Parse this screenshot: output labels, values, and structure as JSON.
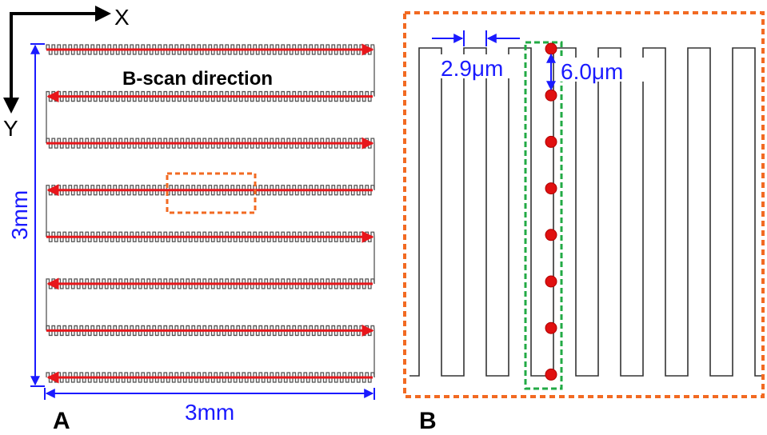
{
  "panel_a": {
    "letter": "A",
    "axis_x": "X",
    "axis_y": "Y",
    "scan_caption": "B-scan direction",
    "height_label": "3mm",
    "width_label": "3mm",
    "row_count": 8,
    "colors": {
      "scan_line": "#e8161b",
      "zoom_box": "#f26a22",
      "dimension": "#1a1aff",
      "raster": "#444444"
    }
  },
  "panel_b": {
    "letter": "B",
    "pitch_label": "2.9μm",
    "step_label": "6.0μm",
    "colors": {
      "border": "#f26a22",
      "highlight_box": "#22aa44",
      "points": "#e01010",
      "dimension": "#1a1aff"
    }
  }
}
